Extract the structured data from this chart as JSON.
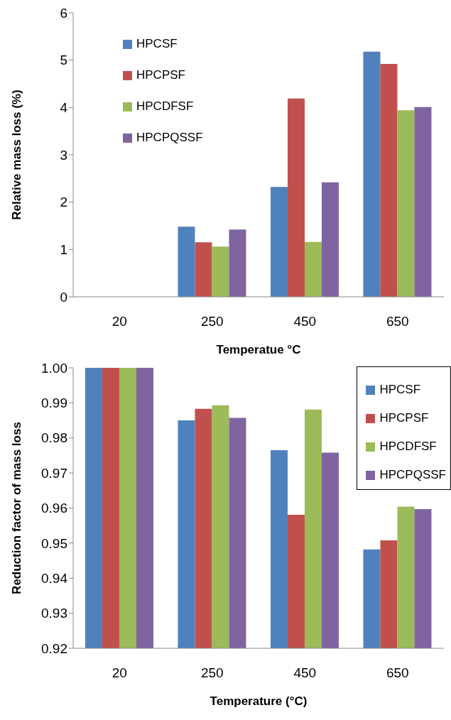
{
  "chart_data": [
    {
      "type": "bar",
      "categories": [
        "20",
        "250",
        "450",
        "650"
      ],
      "xlabel": "Temperatue °C",
      "ylabel": "Relative mass loss (%)",
      "ylim": [
        0,
        6
      ],
      "yticks": [
        0,
        1,
        2,
        3,
        4,
        5,
        6
      ],
      "grid": false,
      "legend": "top left",
      "series": [
        {
          "name": "HPCSF",
          "color": "#4f81bd",
          "values": [
            0,
            1.48,
            2.32,
            5.18
          ]
        },
        {
          "name": "HPCPSF",
          "color": "#c0504d",
          "values": [
            0,
            1.15,
            4.19,
            4.92
          ]
        },
        {
          "name": "HPCDFSF",
          "color": "#9bbb59",
          "values": [
            0,
            1.06,
            1.16,
            3.94
          ]
        },
        {
          "name": "HPCPQSSF",
          "color": "#8064a2",
          "values": [
            0,
            1.42,
            2.42,
            4.01
          ]
        }
      ]
    },
    {
      "type": "bar",
      "categories": [
        "20",
        "250",
        "450",
        "650"
      ],
      "xlabel": "Temperature (°C)",
      "ylabel": "Reduction factor of mass loss",
      "ylim": [
        0.92,
        1.0
      ],
      "yticks": [
        {
          "value": 0.92,
          "label": "0.92"
        },
        {
          "value": 0.93,
          "label": "0.93"
        },
        {
          "value": 0.94,
          "label": "0.94"
        },
        {
          "value": 0.95,
          "label": "0.95"
        },
        {
          "value": 0.96,
          "label": "0.96"
        },
        {
          "value": 0.97,
          "label": "0.97"
        },
        {
          "value": 0.98,
          "label": "0.98"
        },
        {
          "value": 0.99,
          "label": "0.99"
        },
        {
          "value": 1.0,
          "label": "1.00"
        }
      ],
      "grid": false,
      "legend": "top right",
      "series": [
        {
          "name": "HPCSF",
          "color": "#4f81bd",
          "values": [
            1.0,
            0.985,
            0.9765,
            0.9482
          ]
        },
        {
          "name": "HPCPSF",
          "color": "#c0504d",
          "values": [
            1.0,
            0.9883,
            0.9581,
            0.9508
          ]
        },
        {
          "name": "HPCDFSF",
          "color": "#9bbb59",
          "values": [
            1.0,
            0.9893,
            0.9881,
            0.9604
          ]
        },
        {
          "name": "HPCPQSSF",
          "color": "#8064a2",
          "values": [
            1.0,
            0.9857,
            0.9758,
            0.9597
          ]
        }
      ]
    }
  ]
}
